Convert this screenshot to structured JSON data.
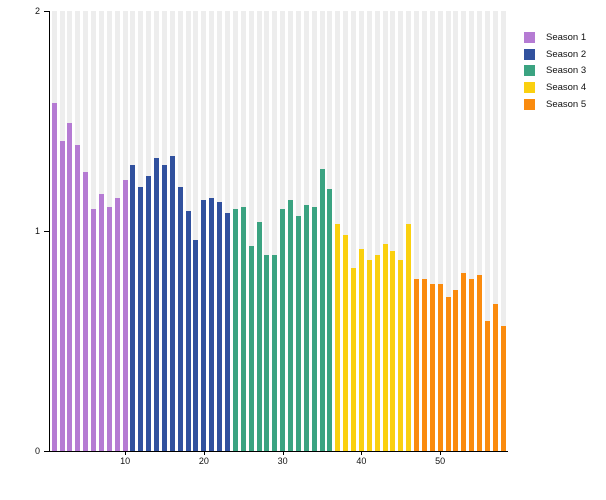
{
  "chart_data": {
    "type": "bar",
    "title": "",
    "xlabel": "",
    "ylabel": "",
    "ylim": [
      0,
      2
    ],
    "ytick_labels": [
      "2",
      "1",
      "0"
    ],
    "xtick_values": [
      10,
      20,
      30,
      40,
      50
    ],
    "n_bars": 58,
    "grid": "full-height light gray band behind each bar",
    "background_band_color": "#ededed",
    "legend_position": "top-right",
    "series": [
      {
        "name": "Season 1",
        "color": "#b57bd3",
        "episode_range": [
          1,
          10
        ],
        "values": [
          1.58,
          1.41,
          1.49,
          1.39,
          1.27,
          1.1,
          1.17,
          1.11,
          1.15,
          1.23
        ]
      },
      {
        "name": "Season 2",
        "color": "#31519e",
        "episode_range": [
          11,
          23
        ],
        "values": [
          1.3,
          1.2,
          1.25,
          1.33,
          1.3,
          1.34,
          1.2,
          1.09,
          0.96,
          1.14,
          1.15,
          1.13,
          1.08
        ]
      },
      {
        "name": "Season 3",
        "color": "#3ba381",
        "episode_range": [
          24,
          36
        ],
        "values": [
          1.1,
          1.11,
          0.93,
          1.04,
          0.89,
          0.89,
          1.1,
          1.14,
          1.07,
          1.12,
          1.11,
          1.28,
          1.19
        ]
      },
      {
        "name": "Season 4",
        "color": "#fad00f",
        "episode_range": [
          37,
          46
        ],
        "values": [
          1.03,
          0.98,
          0.83,
          0.92,
          0.87,
          0.89,
          0.94,
          0.91,
          0.87,
          1.03
        ]
      },
      {
        "name": "Season 5",
        "color": "#fa8b0e",
        "episode_range": [
          47,
          58
        ],
        "values": [
          0.78,
          0.78,
          0.76,
          0.76,
          0.7,
          0.73,
          0.81,
          0.78,
          0.8,
          0.59,
          0.67,
          0.57
        ]
      }
    ]
  }
}
